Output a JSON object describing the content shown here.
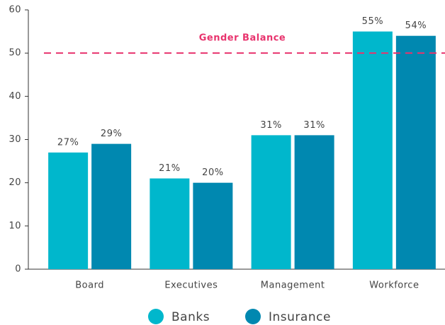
{
  "chart_data": {
    "type": "bar",
    "categories": [
      "Board",
      "Executives",
      "Management",
      "Workforce"
    ],
    "series": [
      {
        "name": "Banks",
        "color": "#00b7cc",
        "values": [
          27,
          21,
          31,
          55
        ],
        "value_labels": [
          "27%",
          "21%",
          "31%",
          "55%"
        ]
      },
      {
        "name": "Insurance",
        "color": "#0088b0",
        "values": [
          29,
          20,
          31,
          54
        ],
        "value_labels": [
          "29%",
          "20%",
          "31%",
          "54%"
        ]
      }
    ],
    "ylim": [
      0,
      60
    ],
    "yticks": [
      0,
      10,
      20,
      30,
      40,
      50,
      60
    ],
    "reference_line": {
      "value": 50,
      "label": "Gender Balance",
      "color": "#e8336d"
    },
    "legend": "bottom"
  }
}
